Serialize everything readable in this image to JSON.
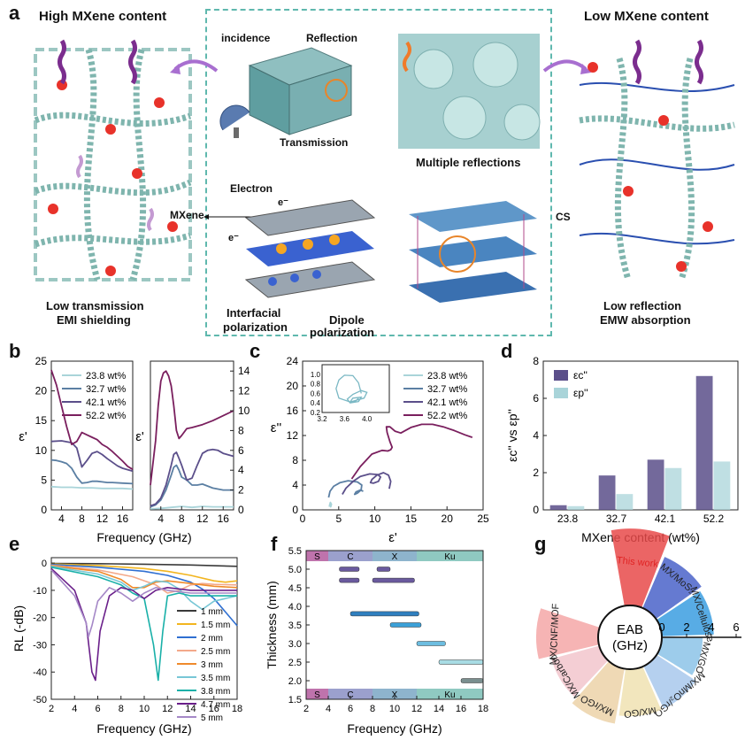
{
  "panel_a": {
    "letter": "a",
    "left_title": "High MXene content",
    "right_title": "Low MXene content",
    "labels": {
      "incidence": "incidence",
      "reflection": "Reflection",
      "transmission": "Transmission",
      "multiple_reflections": "Multiple reflections",
      "electron": "Electron",
      "e_minus_1": "e⁻",
      "e_minus_2": "e⁻",
      "mxene": "MXene",
      "cs": "CS",
      "interfacial": "Interfacial",
      "interfacial2": "polarization",
      "dipole": "Dipole",
      "dipole2": "polarization",
      "low_trans_1": "Low transmission",
      "low_trans_2": "EMI shielding",
      "low_refl_1": "Low reflection",
      "low_refl_2": "EMW absorption"
    },
    "colors": {
      "dash": "#5fb8ae",
      "fiber": "#6fa8a0",
      "node_red": "#e8322a",
      "node_blue": "#2a5bd7",
      "wave_purple": "#7b2d8e",
      "wave_orange": "#f07b2a"
    }
  },
  "chart_data": [
    {
      "id": "b-left",
      "letter": "b",
      "type": "line",
      "xlabel": "Frequency (GHz)",
      "ylabel": "ε'",
      "xlim": [
        2,
        18
      ],
      "ylim": [
        0,
        25
      ],
      "xticks": [
        "4",
        "8",
        "12",
        "16"
      ],
      "yticks": [
        "0",
        "5",
        "10",
        "15",
        "20",
        "25"
      ],
      "legend_position": "top-right",
      "series": [
        {
          "name": "23.8 wt%",
          "color": "#a9d4d9",
          "x": [
            2,
            4,
            6,
            8,
            10,
            12,
            14,
            16,
            18
          ],
          "y": [
            3.9,
            3.8,
            3.8,
            3.7,
            3.7,
            3.6,
            3.6,
            3.6,
            3.5
          ]
        },
        {
          "name": "32.7 wt%",
          "color": "#5b7fa3",
          "x": [
            2,
            3,
            4,
            5,
            6,
            7,
            8,
            9,
            10,
            11,
            12,
            13,
            14,
            16,
            18
          ],
          "y": [
            8.4,
            8.3,
            8.1,
            7.8,
            7.0,
            5.5,
            4.5,
            4.6,
            4.8,
            4.8,
            4.7,
            4.6,
            4.6,
            4.5,
            4.4
          ]
        },
        {
          "name": "42.1 wt%",
          "color": "#5b4f8a",
          "x": [
            2,
            4,
            6,
            7,
            8,
            9,
            10,
            11,
            12,
            13,
            14,
            15,
            16,
            18
          ],
          "y": [
            11.5,
            11.6,
            11.3,
            10.4,
            7.2,
            8.3,
            9.5,
            9.8,
            9.3,
            8.6,
            8.0,
            7.4,
            7.0,
            6.5
          ]
        },
        {
          "name": "52.2 wt%",
          "color": "#7a1f5e",
          "x": [
            2,
            3,
            4,
            5,
            6,
            7,
            8,
            9,
            10,
            11,
            12,
            13,
            14,
            15,
            16,
            17,
            18
          ],
          "y": [
            23.5,
            21.0,
            17.5,
            14.0,
            11.0,
            11.5,
            13.0,
            12.6,
            12.2,
            11.8,
            11.0,
            10.5,
            9.8,
            9.0,
            8.2,
            7.3,
            6.8
          ]
        }
      ]
    },
    {
      "id": "b-right",
      "type": "line",
      "xlabel": "Frequency (GHz)",
      "ylabel": "ε'",
      "xlim": [
        2,
        18
      ],
      "ylim": [
        0,
        15
      ],
      "xticks": [
        "4",
        "8",
        "12",
        "16"
      ],
      "yticks": [
        "0",
        "2",
        "4",
        "6",
        "8",
        "10",
        "12",
        "14"
      ],
      "series": [
        {
          "name": "23.8 wt%",
          "color": "#a9d4d9",
          "x": [
            2,
            4,
            6,
            8,
            10,
            12,
            14,
            16,
            18
          ],
          "y": [
            0.1,
            0.15,
            0.25,
            0.35,
            0.25,
            0.35,
            0.3,
            0.3,
            0.3
          ]
        },
        {
          "name": "32.7 wt%",
          "color": "#5b7fa3",
          "x": [
            2,
            3,
            4,
            5,
            6,
            6.5,
            7,
            7.5,
            8,
            9,
            10,
            11,
            12,
            14,
            16,
            18
          ],
          "y": [
            0.3,
            0.5,
            1.0,
            2.0,
            3.5,
            4.3,
            4.5,
            4.0,
            3.3,
            3.0,
            2.5,
            2.5,
            2.6,
            2.2,
            2.0,
            2.0
          ]
        },
        {
          "name": "42.1 wt%",
          "color": "#5b4f8a",
          "x": [
            2,
            3,
            4,
            5,
            6,
            6.5,
            7,
            7.5,
            8,
            9,
            10,
            11,
            12,
            13,
            14,
            15,
            16,
            18
          ],
          "y": [
            0.4,
            0.6,
            1.2,
            2.5,
            4.5,
            5.6,
            5.8,
            5.2,
            4.5,
            3.0,
            3.2,
            4.5,
            5.7,
            6.0,
            6.1,
            6.0,
            5.7,
            5.4
          ]
        },
        {
          "name": "52.2 wt%",
          "color": "#7a1f5e",
          "x": [
            2,
            3,
            3.5,
            4,
            4.5,
            5,
            5.5,
            6,
            6.5,
            7,
            7.5,
            8,
            9,
            10,
            12,
            14,
            16,
            18
          ],
          "y": [
            2.5,
            7.0,
            10.5,
            13.0,
            13.8,
            14.0,
            13.5,
            12.5,
            10.5,
            8.0,
            7.2,
            7.5,
            8.2,
            8.3,
            8.6,
            9.0,
            9.5,
            10.0
          ]
        }
      ]
    },
    {
      "id": "c",
      "letter": "c",
      "type": "line",
      "xlabel": "ε'",
      "ylabel": "ε''",
      "xlim": [
        0,
        25
      ],
      "ylim": [
        0,
        24
      ],
      "xticks": [
        "0",
        "5",
        "10",
        "15",
        "20",
        "25"
      ],
      "yticks": [
        "0",
        "4",
        "8",
        "12",
        "16",
        "20",
        "24"
      ],
      "legend_position": "top-right",
      "series": [
        {
          "name": "23.8 wt%",
          "color": "#a9d4d9",
          "x": [
            3.9,
            3.85,
            3.8,
            3.9,
            4.0,
            3.85,
            3.75,
            3.7
          ],
          "y": [
            0.6,
            1.0,
            0.7,
            0.5,
            0.9,
            1.2,
            0.8,
            0.5
          ]
        },
        {
          "name": "32.7 wt%",
          "color": "#5b7fa3",
          "x": [
            3.6,
            3.8,
            4.3,
            5.2,
            6.3,
            7.6,
            8.2,
            8.1,
            7.6,
            7.2,
            7.4,
            8.0,
            8.4
          ],
          "y": [
            2.0,
            3.0,
            3.8,
            4.4,
            4.7,
            4.5,
            4.0,
            3.2,
            2.7,
            2.5,
            2.9,
            3.2,
            3.0
          ]
        },
        {
          "name": "42.1 wt%",
          "color": "#5b4f8a",
          "x": [
            5.5,
            6.0,
            7.0,
            8.0,
            9.3,
            10.4,
            10.8,
            10.5,
            9.8,
            9.4,
            9.6,
            10.3,
            11.2,
            11.9,
            12.2,
            12.0
          ],
          "y": [
            2.5,
            3.5,
            4.6,
            5.4,
            5.8,
            5.7,
            5.3,
            4.6,
            4.3,
            4.4,
            4.9,
            5.6,
            6.0,
            5.6,
            4.6,
            3.4
          ]
        },
        {
          "name": "52.2 wt%",
          "color": "#7a1f5e",
          "x": [
            6.8,
            8.0,
            9.6,
            11.0,
            11.8,
            12.2,
            12.4,
            12.1,
            11.7,
            11.6,
            12.1,
            12.8,
            13.6,
            15.0,
            16.5,
            18.0,
            19.5,
            21.0,
            22.5,
            23.5
          ],
          "y": [
            5.0,
            7.0,
            9.0,
            9.6,
            9.5,
            9.7,
            10.1,
            11.0,
            12.5,
            13.4,
            13.4,
            12.7,
            12.4,
            13.3,
            13.8,
            13.8,
            13.4,
            12.8,
            12.1,
            11.7
          ]
        }
      ],
      "inset": {
        "xlim": [
          3.2,
          4.4
        ],
        "ylim": [
          0.2,
          1.2
        ],
        "xticks": [
          "3.2",
          "3.6",
          "4.0"
        ],
        "yticks": [
          "0.2",
          "0.4",
          "0.6",
          "0.8",
          "1.0"
        ],
        "x": [
          3.9,
          3.85,
          3.75,
          3.6,
          3.5,
          3.45,
          3.5,
          3.7,
          3.95,
          4.0,
          3.9,
          3.75,
          3.65,
          3.7,
          3.85,
          3.9,
          3.75,
          3.7,
          3.8,
          3.85
        ],
        "y": [
          0.6,
          0.82,
          0.97,
          0.98,
          0.88,
          0.7,
          0.5,
          0.42,
          0.5,
          0.62,
          0.66,
          0.58,
          0.48,
          0.4,
          0.43,
          0.52,
          0.5,
          0.42,
          0.44,
          0.5
        ]
      }
    },
    {
      "id": "d",
      "letter": "d",
      "type": "bar",
      "xlabel": "MXene content (wt%)",
      "ylabel": "εc'' vs εp''",
      "ylim": [
        0,
        8
      ],
      "yticks": [
        "0",
        "2",
        "4",
        "6",
        "8"
      ],
      "categories": [
        "23.8",
        "32.7",
        "42.1",
        "52.2"
      ],
      "legend_position": "top-left",
      "series": [
        {
          "name": "εc''",
          "color": "#5b4f8a",
          "values": [
            0.25,
            1.85,
            2.7,
            7.2
          ]
        },
        {
          "name": "εp''",
          "color": "#a9d4d9",
          "values": [
            0.2,
            0.85,
            2.25,
            2.6
          ]
        }
      ]
    },
    {
      "id": "e",
      "letter": "e",
      "type": "line",
      "xlabel": "Frequency (GHz)",
      "ylabel": "RL (-dB)",
      "xlim": [
        2,
        18
      ],
      "ylim": [
        -50,
        2
      ],
      "xticks": [
        "2",
        "4",
        "6",
        "8",
        "10",
        "12",
        "14",
        "16",
        "18"
      ],
      "yticks": [
        "0",
        "-10",
        "-20",
        "-30",
        "-40",
        "-50"
      ],
      "legend_position": "bottom-right",
      "series": [
        {
          "name": "1 mm",
          "color": "#3a3a3a",
          "x": [
            2,
            6,
            10,
            14,
            18
          ],
          "y": [
            -0.1,
            -0.2,
            -0.4,
            -0.7,
            -1.2
          ]
        },
        {
          "name": "1.5 mm",
          "color": "#f2b51f",
          "x": [
            2,
            6,
            10,
            12,
            14,
            16,
            17,
            18
          ],
          "y": [
            -0.3,
            -0.9,
            -2.0,
            -3.0,
            -4.5,
            -6.5,
            -7.0,
            -6.5
          ]
        },
        {
          "name": "2 mm",
          "color": "#2f6fd1",
          "x": [
            2,
            6,
            10,
            12,
            14,
            15,
            16,
            17,
            18
          ],
          "y": [
            -0.5,
            -1.5,
            -3.0,
            -4.5,
            -7.0,
            -9.5,
            -13.0,
            -18.0,
            -23.0
          ]
        },
        {
          "name": "2.5 mm",
          "color": "#f3a98a",
          "x": [
            2,
            6,
            9,
            11,
            12,
            13,
            14,
            15,
            16,
            18
          ],
          "y": [
            -0.8,
            -2.5,
            -5.0,
            -8.0,
            -11.0,
            -10.0,
            -8.0,
            -7.5,
            -7.8,
            -8.0
          ]
        },
        {
          "name": "3 mm",
          "color": "#ef8a2c",
          "x": [
            2,
            6,
            8,
            9,
            10,
            11,
            12,
            14,
            16,
            18
          ],
          "y": [
            -1.0,
            -3.0,
            -6.0,
            -9.0,
            -9.0,
            -7.0,
            -6.5,
            -7.5,
            -8.5,
            -9.0
          ]
        },
        {
          "name": "3.5 mm",
          "color": "#78c7d6",
          "x": [
            2,
            6,
            8,
            9,
            10,
            11,
            12,
            13,
            14,
            15,
            16,
            18
          ],
          "y": [
            -1.2,
            -4.0,
            -7.0,
            -10.0,
            -8.5,
            -6.5,
            -7.0,
            -9.5,
            -14.0,
            -17.0,
            -14.0,
            -12.0
          ]
        },
        {
          "name": "3.8 mm",
          "color": "#19b0a8",
          "x": [
            2,
            6,
            8,
            9,
            10,
            10.8,
            11.2,
            11.6,
            12,
            13,
            14,
            16,
            18
          ],
          "y": [
            -1.5,
            -5.0,
            -8.0,
            -11.0,
            -13.0,
            -30.0,
            -43.0,
            -25.0,
            -12.0,
            -11.0,
            -12.0,
            -12.0,
            -12.0
          ]
        },
        {
          "name": "4.7 mm",
          "color": "#6a1f8a",
          "x": [
            2,
            4,
            5,
            5.5,
            5.8,
            6.2,
            7,
            8,
            9,
            10,
            11,
            12,
            14,
            16,
            18
          ],
          "y": [
            -2.0,
            -10.0,
            -22.0,
            -40.0,
            -43.0,
            -25.0,
            -12.0,
            -9.0,
            -10.0,
            -13.0,
            -10.0,
            -9.0,
            -10.0,
            -10.0,
            -10.0
          ]
        },
        {
          "name": "5 mm",
          "color": "#a588c7",
          "x": [
            2,
            4,
            5,
            5.2,
            5.5,
            6,
            7,
            8,
            9,
            10,
            11,
            12,
            14,
            16,
            18
          ],
          "y": [
            -2.5,
            -12.0,
            -22.0,
            -27.0,
            -23.0,
            -14.0,
            -9.0,
            -11.0,
            -14.0,
            -11.0,
            -9.0,
            -10.0,
            -11.0,
            -11.0,
            -11.0
          ]
        }
      ]
    },
    {
      "id": "f",
      "letter": "f",
      "type": "bar",
      "xlabel": "Frequency (GHz)",
      "ylabel": "Thickness (mm)",
      "xlim": [
        2,
        18
      ],
      "ylim": [
        1.5,
        5.5
      ],
      "xticks": [
        "2",
        "4",
        "6",
        "8",
        "10",
        "12",
        "14",
        "16",
        "18"
      ],
      "yticks": [
        "1.5",
        "2.0",
        "2.5",
        "3.0",
        "3.5",
        "4.0",
        "4.5",
        "5.0",
        "5.5"
      ],
      "bands": [
        {
          "name": "S",
          "from": 2,
          "to": 4,
          "color": "#b45a9e"
        },
        {
          "name": "C",
          "from": 4,
          "to": 8,
          "color": "#8a8fc4"
        },
        {
          "name": "X",
          "from": 8,
          "to": 12,
          "color": "#7aa7c4"
        },
        {
          "name": "Ku",
          "from": 12,
          "to": 18,
          "color": "#7bc0b6"
        }
      ],
      "ranges": [
        {
          "thickness": 5.0,
          "from": 5.0,
          "to": 6.8,
          "color": "#6a5a9e"
        },
        {
          "thickness": 5.0,
          "from": 8.4,
          "to": 9.6,
          "color": "#6a5a9e"
        },
        {
          "thickness": 4.7,
          "from": 5.0,
          "to": 6.8,
          "color": "#6a5a9e"
        },
        {
          "thickness": 4.7,
          "from": 8.0,
          "to": 11.8,
          "color": "#6a5a9e"
        },
        {
          "thickness": 3.8,
          "from": 6.0,
          "to": 12.2,
          "color": "#2f7fbf"
        },
        {
          "thickness": 3.5,
          "from": 9.6,
          "to": 12.4,
          "color": "#3ba0d8"
        },
        {
          "thickness": 3.0,
          "from": 12.0,
          "to": 14.6,
          "color": "#6cbde0"
        },
        {
          "thickness": 2.5,
          "from": 14.0,
          "to": 18.0,
          "color": "#a8dce4"
        },
        {
          "thickness": 2.0,
          "from": 16.0,
          "to": 18.0,
          "color": "#7a8f8f"
        }
      ]
    },
    {
      "id": "g",
      "letter": "g",
      "type": "bar",
      "subtype": "radial",
      "center_label_1": "EAB",
      "center_label_2": "(GHz)",
      "axis_ticks": [
        "0",
        "2",
        "4",
        "6"
      ],
      "categories": [
        "This work",
        "MX/MoS₂",
        "MX/Cellulose",
        "MX/GO",
        "MX/MnO₂/rGO",
        "MX/GO",
        "MX/rGO",
        "MX/Carbon",
        "MX/CNF/MOF"
      ],
      "values": [
        6.2,
        4.5,
        4.2,
        3.3,
        3.8,
        3.8,
        4.5,
        4.0,
        5.0
      ],
      "colors": [
        "#e84a4a",
        "#4a63c9",
        "#3b9de0",
        "#8cc3e8",
        "#a8c8ec",
        "#f0e2b2",
        "#ecd2a8",
        "#f2c6cc",
        "#f4a7a7"
      ]
    }
  ]
}
